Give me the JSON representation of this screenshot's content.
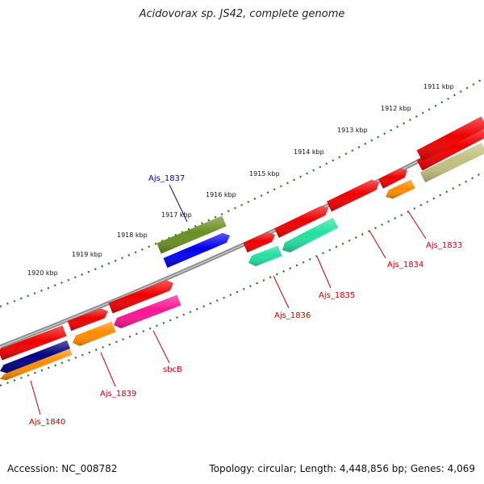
{
  "title": "Acidovorax sp. JS42, complete genome",
  "footer": {
    "accession": "Accession: NC_008782",
    "stats": "Topology: circular; Length: 4,448,856 bp; Genes: 4,069"
  },
  "colors": {
    "backbone": "#8a8a8a",
    "ticks": "#1a7a1a",
    "label_red": "#cc0000",
    "label_blue": "#0000cc"
  },
  "scale_labels": [
    "1911 kbp",
    "1912 kbp",
    "1913 kbp",
    "1914 kbp",
    "1915 kbp",
    "1916 kbp",
    "1917 kbp",
    "1918 kbp",
    "1919 kbp",
    "1920 kbp"
  ],
  "genes": [
    {
      "id": "g1",
      "color": "#ee0000",
      "label": ""
    },
    {
      "id": "g2",
      "color": "#ee0000",
      "label": ""
    },
    {
      "id": "g3",
      "color": "#ee0000",
      "label": ""
    },
    {
      "id": "g4",
      "color": "#ee0000",
      "label": ""
    },
    {
      "id": "g5",
      "color": "#ee0000",
      "label": ""
    },
    {
      "id": "g6",
      "color": "#ee0000",
      "label": ""
    },
    {
      "id": "g7",
      "color": "#ee0000",
      "label": ""
    },
    {
      "id": "g8",
      "color": "#ee0000",
      "label": ""
    },
    {
      "id": "g9",
      "color": "#c0c080",
      "label": ""
    },
    {
      "id": "g10",
      "color": "#ff8c00",
      "label": "Ajs_1833"
    },
    {
      "id": "g11",
      "color": "#ee0000",
      "label": "Ajs_1834"
    },
    {
      "id": "g12",
      "color": "#22e0a0",
      "label": "Ajs_1835"
    },
    {
      "id": "g13",
      "color": "#22e0a0",
      "label": "Ajs_1836"
    },
    {
      "id": "g14",
      "color": "#6b8e23",
      "label": ""
    },
    {
      "id": "g15",
      "color": "#0000ee",
      "label": "Ajs_1837"
    },
    {
      "id": "g16",
      "color": "#ff1493",
      "label": "sbcB"
    },
    {
      "id": "g17",
      "color": "#ff8c00",
      "label": "Ajs_1839"
    },
    {
      "id": "g18",
      "color": "#000080",
      "label": ""
    },
    {
      "id": "g19",
      "color": "#ff8c00",
      "label": "Ajs_1840"
    }
  ]
}
